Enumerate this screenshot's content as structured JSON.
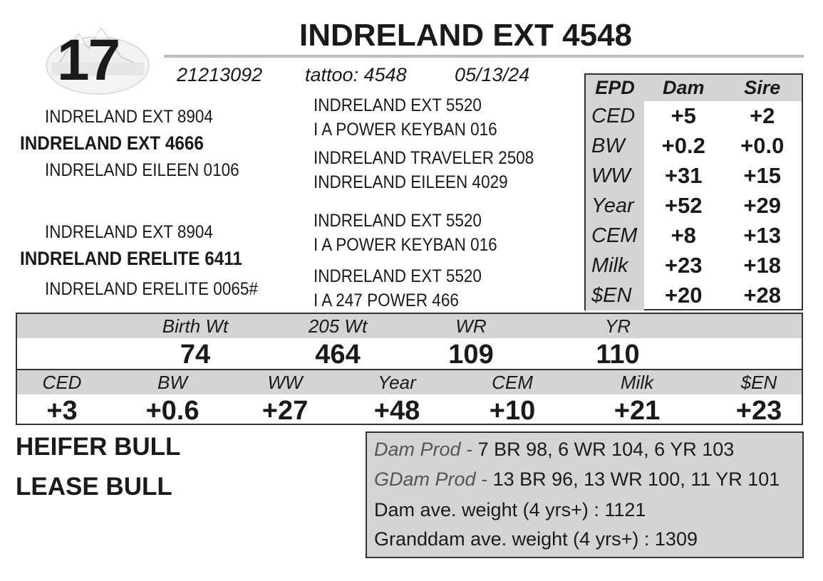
{
  "lot_number": "17",
  "title": "INDRELAND EXT 4548",
  "registration": "21213092",
  "tattoo": "tattoo: 4548",
  "birth_date": "05/13/24",
  "pedigree": {
    "sire_sire": "INDRELAND EXT 8904",
    "sire": "INDRELAND EXT 4666",
    "sire_dam": "INDRELAND EILEEN 0106",
    "dam_sire": "INDRELAND EXT 8904",
    "dam": "INDRELAND ERELITE 6411",
    "dam_dam": "INDRELAND ERELITE 0065#",
    "g1": "INDRELAND EXT 5520",
    "g2": "I A POWER KEYBAN 016",
    "g3": "INDRELAND TRAVELER 2508",
    "g4": "INDRELAND EILEEN 4029",
    "g5": "INDRELAND EXT 5520",
    "g6": "I A POWER KEYBAN 016",
    "g7": "INDRELAND EXT 5520",
    "g8": "I A 247 POWER 466"
  },
  "epd_table": {
    "headers": [
      "EPD",
      "Dam",
      "Sire"
    ],
    "rows": [
      {
        "label": "CED",
        "dam": "+5",
        "sire": "+2"
      },
      {
        "label": "BW",
        "dam": "+0.2",
        "sire": "+0.0"
      },
      {
        "label": "WW",
        "dam": "+31",
        "sire": "+15"
      },
      {
        "label": "Year",
        "dam": "+52",
        "sire": "+29"
      },
      {
        "label": "CEM",
        "dam": "+8",
        "sire": "+13"
      },
      {
        "label": "Milk",
        "dam": "+23",
        "sire": "+18"
      },
      {
        "label": "$EN",
        "dam": "+20",
        "sire": "+28"
      }
    ]
  },
  "performance": {
    "labels": [
      "Birth Wt",
      "205 Wt",
      "WR",
      "YR"
    ],
    "values": [
      "74",
      "464",
      "109",
      "110"
    ]
  },
  "own_epds": {
    "labels": [
      "CED",
      "BW",
      "WW",
      "Year",
      "CEM",
      "Milk",
      "$EN"
    ],
    "values": [
      "+3",
      "+0.6",
      "+27",
      "+48",
      "+10",
      "+21",
      "+23"
    ]
  },
  "tags": [
    "HEIFER BULL",
    "LEASE BULL"
  ],
  "production": {
    "dam_prod_label": "Dam Prod -",
    "dam_prod": "7 BR 98, 6 WR 104, 6 YR 103",
    "gdam_prod_label": "GDam Prod -",
    "gdam_prod": "13 BR 96, 13 WR 100, 11 YR 101",
    "dam_weight": "Dam ave. weight (4 yrs+) : 1121",
    "granddam_weight": "Granddam ave. weight (4 yrs+) : 1309"
  },
  "colors": {
    "panel_gray": "#d4d4d4",
    "border": "#333333"
  }
}
